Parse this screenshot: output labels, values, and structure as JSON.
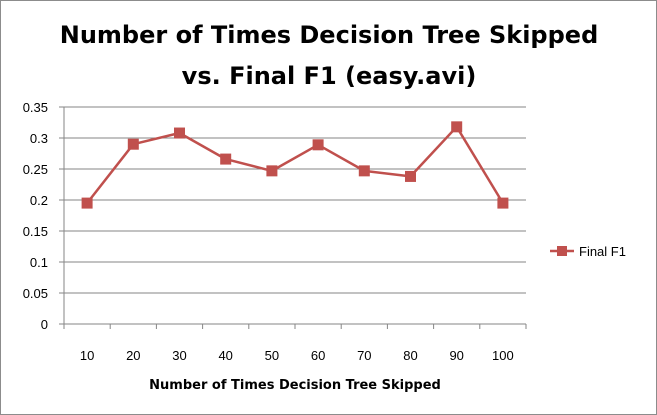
{
  "chart_data": {
    "type": "line",
    "title": [
      "Number of Times Decision Tree Skipped",
      "vs. Final F1 (easy.avi)"
    ],
    "xlabel": "Number of Times Decision Tree Skipped",
    "ylabel": "",
    "categories": [
      "10",
      "20",
      "30",
      "40",
      "50",
      "60",
      "70",
      "80",
      "90",
      "100"
    ],
    "series": [
      {
        "name": "Final F1",
        "color": "#c0504d",
        "marker": "square",
        "values": [
          0.195,
          0.29,
          0.308,
          0.266,
          0.247,
          0.289,
          0.247,
          0.238,
          0.318,
          0.195
        ]
      }
    ],
    "ylim": [
      0,
      0.35
    ],
    "yticks": [
      "0",
      "0.05",
      "0.1",
      "0.15",
      "0.2",
      "0.25",
      "0.3",
      "0.35"
    ],
    "grid": true,
    "legend": "right"
  }
}
